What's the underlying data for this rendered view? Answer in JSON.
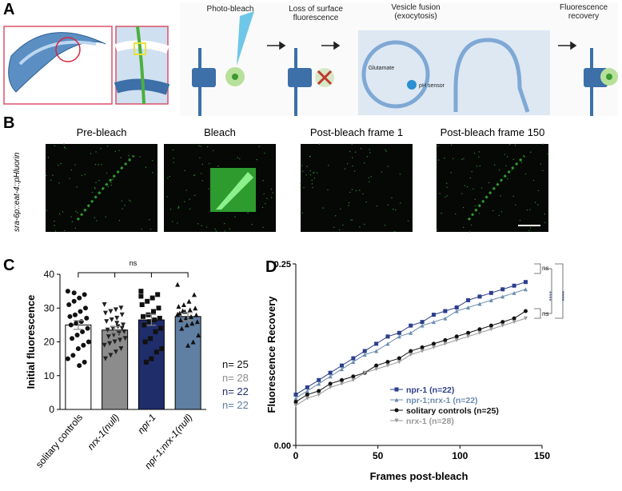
{
  "panel_labels": [
    "A",
    "B",
    "C",
    "D"
  ],
  "schematic": {
    "steps": [
      "Photo-bleach",
      "Loss of surface fluorescence",
      "Vesicle fusion (exocytosis)",
      "Fluorescence recovery"
    ],
    "labels": [
      "Glutamate",
      "pH sensor"
    ]
  },
  "images": {
    "strain": "sra-6p::eat-4::pHluorin",
    "titles": [
      "Pre-bleach",
      "Bleach",
      "Post-bleach frame 1",
      "Post-bleach frame 150"
    ]
  },
  "chart_data": [
    {
      "type": "bar",
      "y_label": "Initial fluorescence",
      "categories": [
        "solitary controls",
        "nrx-1(null)",
        "npr-1",
        "npr-1;nrx-1(null)"
      ],
      "values": [
        25,
        23.5,
        26.5,
        27.5
      ],
      "errors": [
        1.3,
        1,
        1.6,
        1.2
      ],
      "colors": [
        "#ffffff",
        "#8c8c8c",
        "#1f2d6b",
        "#5f7fa3"
      ],
      "markers": [
        "circle",
        "triangle-down",
        "square",
        "triangle"
      ],
      "points": [
        [
          35,
          34,
          33,
          32,
          31,
          30,
          29,
          28,
          27.5,
          27,
          26,
          25.5,
          25,
          24,
          23,
          22,
          21,
          20,
          19,
          18,
          16,
          15,
          14,
          13,
          34.5
        ],
        [
          31,
          30,
          29.5,
          29,
          28.5,
          28,
          27,
          26.5,
          26,
          25,
          24.5,
          24,
          23.5,
          23,
          22.5,
          22,
          21.5,
          21,
          20.5,
          20,
          19.5,
          19,
          18,
          17,
          16,
          15,
          24,
          25.5
        ],
        [
          35,
          34,
          33,
          32,
          31,
          30,
          29,
          28,
          27.5,
          27,
          26.5,
          26,
          25,
          24,
          23,
          21,
          20,
          18,
          17,
          15,
          14,
          33.5
        ],
        [
          37,
          34,
          32,
          31,
          30.5,
          30,
          29.5,
          29,
          28.5,
          28,
          27.5,
          27,
          26.5,
          26,
          25.5,
          25,
          24,
          22,
          20,
          19,
          29.2,
          28.2
        ]
      ],
      "n_labels": [
        "n= 25",
        "n= 28",
        "n= 22",
        "n= 22"
      ],
      "annotation": "ns",
      "ylim": [
        0,
        40
      ],
      "yticks": [
        0,
        10,
        20,
        30,
        40
      ]
    },
    {
      "type": "scatter",
      "x_label": "Frames post-bleach",
      "y_label": "Fluorescence Recovery",
      "x": [
        0,
        7,
        14,
        21,
        28,
        35,
        42,
        49,
        56,
        63,
        70,
        77,
        84,
        91,
        98,
        105,
        112,
        119,
        126,
        133,
        140
      ],
      "series": [
        {
          "name": "npr-1 (n=22)",
          "color": "#2c3e8c",
          "marker": "square",
          "values": [
            0.07,
            0.08,
            0.09,
            0.1,
            0.11,
            0.12,
            0.13,
            0.14,
            0.15,
            0.155,
            0.165,
            0.17,
            0.18,
            0.185,
            0.19,
            0.2,
            0.205,
            0.21,
            0.215,
            0.22,
            0.225
          ]
        },
        {
          "name": "npr-1;nrx-1 (n=22)",
          "color": "#6b8cae",
          "marker": "triangle",
          "values": [
            0.065,
            0.075,
            0.085,
            0.095,
            0.105,
            0.115,
            0.125,
            0.13,
            0.14,
            0.15,
            0.155,
            0.165,
            0.17,
            0.175,
            0.185,
            0.19,
            0.195,
            0.2,
            0.205,
            0.21,
            0.215
          ]
        },
        {
          "name": "solitary controls (n=25)",
          "color": "#111111",
          "marker": "circle",
          "values": [
            0.06,
            0.07,
            0.075,
            0.085,
            0.09,
            0.095,
            0.1,
            0.11,
            0.115,
            0.12,
            0.13,
            0.135,
            0.14,
            0.145,
            0.15,
            0.155,
            0.16,
            0.165,
            0.17,
            0.175,
            0.185
          ]
        },
        {
          "name": "nrx-1 (n=28)",
          "color": "#999999",
          "marker": "triangle-down",
          "values": [
            0.055,
            0.065,
            0.07,
            0.08,
            0.085,
            0.09,
            0.1,
            0.105,
            0.11,
            0.115,
            0.125,
            0.13,
            0.135,
            0.14,
            0.145,
            0.15,
            0.155,
            0.16,
            0.165,
            0.17,
            0.175
          ]
        }
      ],
      "annotations": [
        "ns",
        "ns",
        "****",
        "****"
      ],
      "xlim": [
        0,
        150
      ],
      "xticks": [
        0,
        50,
        100,
        150
      ],
      "ylim": [
        0,
        0.25
      ],
      "yticks": [
        {
          "value": 0,
          "label": "0.00"
        },
        0.25
      ]
    }
  ]
}
